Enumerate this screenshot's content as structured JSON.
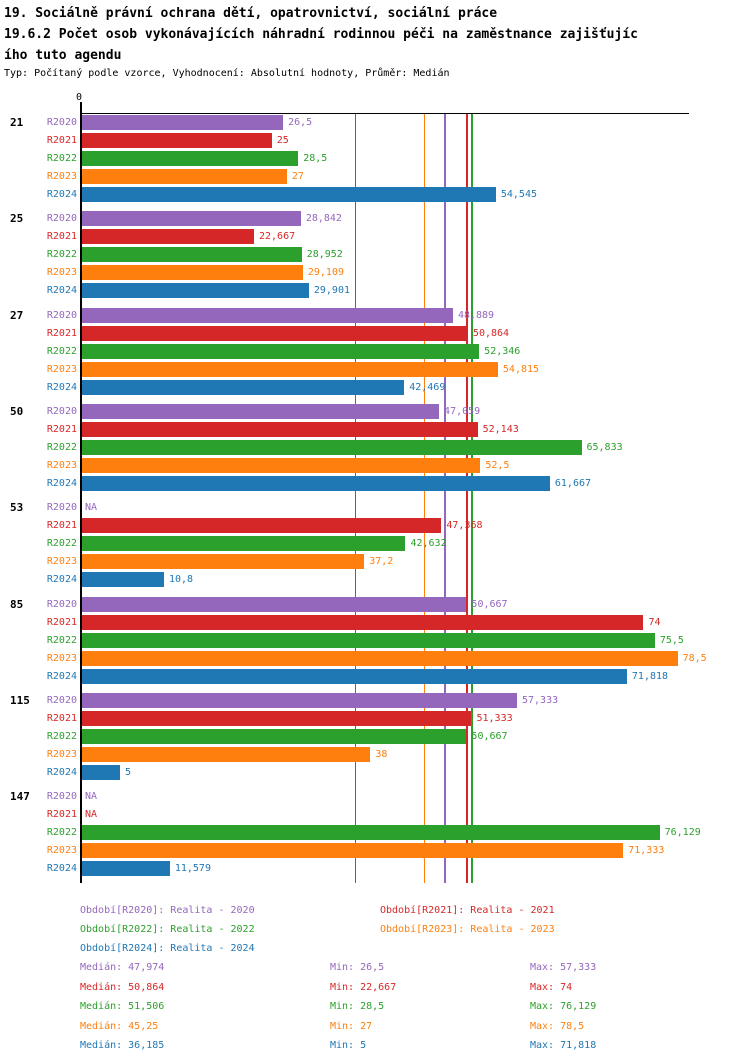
{
  "header": {
    "title_lines": [
      "19. Sociálně právní ochrana dětí, opatrovnictví, sociální práce",
      "19.6.2 Počet osob vykonávajících náhradní rodinnou péči na zaměstnance zajišťujíc",
      "ího tuto agendu"
    ],
    "subtitle": "Typ: Počítaný podle vzorce, Vyhodnocení: Absolutní hodnoty, Průměr: Medián"
  },
  "colors": {
    "R2020": "#9467bd",
    "R2021": "#d62728",
    "R2022": "#2ca02c",
    "R2023": "#ff7f0e",
    "R2024": "#1f77b4",
    "axis": "#000000"
  },
  "axis": {
    "zero_label": "0",
    "min": 0,
    "max": 80
  },
  "chart_data": {
    "type": "bar",
    "orientation": "horizontal",
    "xlim": [
      0,
      80
    ],
    "grid": false,
    "value_format": "czech-decimal-comma",
    "series_labels": [
      "R2020",
      "R2021",
      "R2022",
      "R2023",
      "R2024"
    ],
    "groups": [
      {
        "label": "21",
        "values": [
          26.5,
          25,
          28.5,
          27,
          54.545
        ],
        "display": [
          "26,5",
          "25",
          "28,5",
          "27",
          "54,545"
        ]
      },
      {
        "label": "25",
        "values": [
          28.842,
          22.667,
          28.952,
          29.109,
          29.901
        ],
        "display": [
          "28,842",
          "22,667",
          "28,952",
          "29,109",
          "29,901"
        ]
      },
      {
        "label": "27",
        "values": [
          48.889,
          50.864,
          52.346,
          54.815,
          42.469
        ],
        "display": [
          "48,889",
          "50,864",
          "52,346",
          "54,815",
          "42,469"
        ]
      },
      {
        "label": "50",
        "values": [
          47.059,
          52.143,
          65.833,
          52.5,
          61.667
        ],
        "display": [
          "47,059",
          "52,143",
          "65,833",
          "52,5",
          "61,667"
        ]
      },
      {
        "label": "53",
        "values": [
          null,
          47.368,
          42.632,
          37.2,
          10.8
        ],
        "display": [
          "NA",
          "47,368",
          "42,632",
          "37,2",
          "10,8"
        ]
      },
      {
        "label": "85",
        "values": [
          50.667,
          74,
          75.5,
          78.5,
          71.818
        ],
        "display": [
          "50,667",
          "74",
          "75,5",
          "78,5",
          "71,818"
        ]
      },
      {
        "label": "115",
        "values": [
          57.333,
          51.333,
          50.667,
          38,
          5
        ],
        "display": [
          "57,333",
          "51,333",
          "50,667",
          "38",
          "5"
        ]
      },
      {
        "label": "147",
        "values": [
          null,
          null,
          76.129,
          71.333,
          11.579
        ],
        "display": [
          "NA",
          "NA",
          "76,129",
          "71,333",
          "11,579"
        ]
      }
    ],
    "median_lines": {
      "R2020": 47.974,
      "R2021": 50.864,
      "R2022": 51.506,
      "R2023": 45.25,
      "R2024": 36.185
    }
  },
  "legend": {
    "items": [
      {
        "series": "R2020",
        "label": "Období[R2020]: Realita - 2020"
      },
      {
        "series": "R2021",
        "label": "Období[R2021]: Realita - 2021"
      },
      {
        "series": "R2022",
        "label": "Období[R2022]: Realita - 2022"
      },
      {
        "series": "R2023",
        "label": "Období[R2023]: Realita - 2023"
      },
      {
        "series": "R2024",
        "label": "Období[R2024]: Realita - 2024"
      }
    ]
  },
  "stats": {
    "rows": [
      {
        "series": "R2020",
        "median": "Medián: 47,974",
        "min": "Min: 26,5",
        "max": "Max: 57,333"
      },
      {
        "series": "R2021",
        "median": "Medián: 50,864",
        "min": "Min: 22,667",
        "max": "Max: 74"
      },
      {
        "series": "R2022",
        "median": "Medián: 51,506",
        "min": "Min: 28,5",
        "max": "Max: 76,129"
      },
      {
        "series": "R2023",
        "median": "Medián: 45,25",
        "min": "Min: 27",
        "max": "Max: 78,5"
      },
      {
        "series": "R2024",
        "median": "Medián: 36,185",
        "min": "Min: 5",
        "max": "Max: 71,818"
      }
    ]
  }
}
